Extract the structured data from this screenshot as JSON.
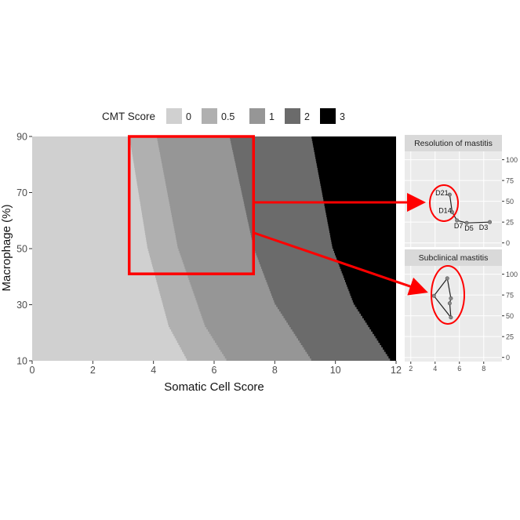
{
  "chart_data": [
    {
      "type": "heatmap",
      "title": "",
      "xlabel": "Somatic Cell Score",
      "ylabel": "Macrophage (%)",
      "xlim": [
        0,
        12
      ],
      "ylim": [
        10,
        90
      ],
      "xticks": [
        0,
        2,
        4,
        6,
        8,
        10,
        12
      ],
      "yticks": [
        10,
        30,
        50,
        70,
        90
      ],
      "legend": {
        "title": "CMT Score",
        "placement": "top",
        "categories": [
          "0",
          "0.5",
          "1",
          "2",
          "3"
        ],
        "colors": [
          "#d0d0d0",
          "#b0b0b0",
          "#969696",
          "#6b6b6b",
          "#000000"
        ]
      },
      "boundaries": [
        {
          "between": [
            "0",
            "0.5"
          ],
          "points": [
            [
              3.2,
              90
            ],
            [
              3.8,
              50
            ],
            [
              4.5,
              22
            ],
            [
              5.1,
              10
            ]
          ]
        },
        {
          "between": [
            "0.5",
            "1"
          ],
          "points": [
            [
              4.1,
              90
            ],
            [
              4.8,
              50
            ],
            [
              5.7,
              22
            ],
            [
              6.4,
              10
            ]
          ]
        },
        {
          "between": [
            "1",
            "2"
          ],
          "points": [
            [
              6.5,
              90
            ],
            [
              7.3,
              50
            ],
            [
              8.0,
              30
            ],
            [
              9.2,
              10
            ]
          ]
        },
        {
          "between": [
            "2",
            "3"
          ],
          "points": [
            [
              9.2,
              90
            ],
            [
              9.9,
              50
            ],
            [
              10.6,
              30
            ],
            [
              11.8,
              10
            ]
          ]
        }
      ],
      "highlight_box": {
        "x": [
          3.2,
          7.3
        ],
        "y": [
          41,
          90
        ],
        "color": "#ff0000"
      }
    },
    {
      "type": "line",
      "title": "Resolution of mastitis",
      "xlim": [
        1.5,
        9.5
      ],
      "ylim": [
        -5,
        110
      ],
      "yticks": [
        0,
        25,
        50,
        75,
        100
      ],
      "points": [
        {
          "label": "D21",
          "x": 5.2,
          "y": 58
        },
        {
          "label": "D14",
          "x": 5.4,
          "y": 37
        },
        {
          "label": "D7",
          "x": 5.8,
          "y": 27
        },
        {
          "label": "D5",
          "x": 6.6,
          "y": 24
        },
        {
          "label": "D3",
          "x": 8.5,
          "y": 25
        }
      ],
      "ellipse_color": "#ff0000"
    },
    {
      "type": "line",
      "title": "Subclinical mastitis",
      "xlim": [
        1.5,
        9.5
      ],
      "ylim": [
        -5,
        110
      ],
      "xticks": [
        2,
        4,
        6,
        8
      ],
      "yticks": [
        0,
        25,
        50,
        75,
        100
      ],
      "points": [
        {
          "x": 5.0,
          "y": 95
        },
        {
          "x": 3.9,
          "y": 74
        },
        {
          "x": 5.3,
          "y": 48
        },
        {
          "x": 5.2,
          "y": 65
        },
        {
          "x": 5.3,
          "y": 71
        }
      ],
      "ellipse_color": "#ff0000"
    }
  ]
}
